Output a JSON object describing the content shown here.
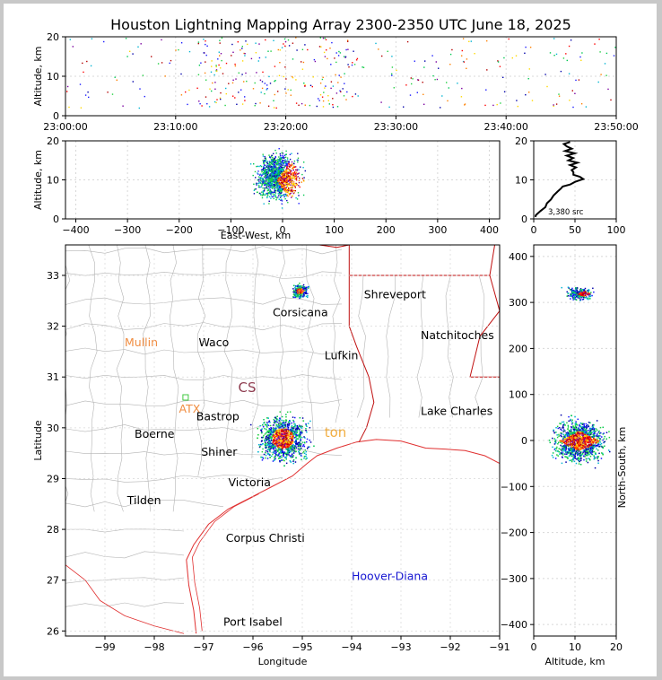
{
  "chart_data": {
    "title": "Houston Lightning Mapping Array 2300-2350 UTC June 18, 2025",
    "panels": [
      {
        "type": "scatter",
        "name": "time-altitude",
        "ylabel": "Altitude, km",
        "xlim": [
          "23:00:00",
          "23:50:00"
        ],
        "ylim": [
          0,
          20
        ],
        "x_ticks": [
          "23:00:00",
          "23:10:00",
          "23:20:00",
          "23:30:00",
          "23:40:00",
          "23:50:00"
        ],
        "y_ticks": [
          "0",
          "10",
          "20"
        ]
      },
      {
        "type": "scatter",
        "name": "east-west-altitude",
        "xlabel": "East-West, km",
        "ylabel": "Altitude, km",
        "xlim": [
          -420,
          420
        ],
        "ylim": [
          0,
          20
        ],
        "x_ticks": [
          "−400",
          "−300",
          "−200",
          "−100",
          "0",
          "100",
          "200",
          "300",
          "400"
        ],
        "y_ticks": [
          "0",
          "10",
          "20"
        ]
      },
      {
        "type": "line",
        "name": "altitude-histogram",
        "xlim": [
          0,
          100
        ],
        "ylim": [
          0,
          20
        ],
        "x_ticks": [
          "0",
          "50",
          "100"
        ],
        "y_ticks": [
          "0",
          "10",
          "20"
        ],
        "annotation": "3,380 src",
        "profile": [
          [
            2,
            0.5
          ],
          [
            5,
            1.0
          ],
          [
            8,
            2.0
          ],
          [
            12,
            3.0
          ],
          [
            16,
            4.0
          ],
          [
            20,
            5.0
          ],
          [
            24,
            6.0
          ],
          [
            28,
            7.0
          ],
          [
            33,
            7.8
          ],
          [
            38,
            8.3
          ],
          [
            44,
            8.8
          ],
          [
            52,
            9.5
          ],
          [
            60,
            10.2
          ],
          [
            55,
            10.8
          ],
          [
            48,
            11.3
          ],
          [
            50,
            12.0
          ],
          [
            46,
            12.5
          ],
          [
            52,
            13.2
          ],
          [
            44,
            13.8
          ],
          [
            50,
            14.4
          ],
          [
            42,
            15.0
          ],
          [
            48,
            15.6
          ],
          [
            40,
            16.2
          ],
          [
            50,
            16.8
          ],
          [
            38,
            17.4
          ],
          [
            46,
            18.0
          ],
          [
            40,
            18.6
          ],
          [
            36,
            19.2
          ],
          [
            44,
            19.7
          ]
        ]
      },
      {
        "type": "scatter",
        "name": "plan-view-map",
        "xlabel": "Longitude",
        "ylabel": "Latitude",
        "xlim": [
          -99.8,
          -91.0
        ],
        "ylim": [
          25.9,
          33.6
        ],
        "x_ticks": [
          "−99",
          "−98",
          "−97",
          "−96",
          "−95",
          "−94",
          "−93",
          "−92",
          "−91"
        ],
        "y_ticks": [
          "26",
          "27",
          "28",
          "29",
          "30",
          "31",
          "32",
          "33"
        ],
        "storm_clusters": [
          {
            "lon": -95.4,
            "lat": 29.8,
            "spread": [
              0.45,
              0.4
            ]
          },
          {
            "lon": -95.05,
            "lat": 32.7,
            "spread": [
              0.15,
              0.12
            ]
          }
        ],
        "cities": [
          {
            "name": "Shreveport",
            "lon": -93.75,
            "lat": 32.55,
            "color": "#000000"
          },
          {
            "name": "Corsicana",
            "lon": -95.6,
            "lat": 32.2,
            "color": "#000000"
          },
          {
            "name": "Natchitoches",
            "lon": -92.6,
            "lat": 31.75,
            "color": "#000000"
          },
          {
            "name": "Mullin",
            "lon": -98.6,
            "lat": 31.6,
            "color": "#f08c40"
          },
          {
            "name": "Waco",
            "lon": -97.1,
            "lat": 31.6,
            "color": "#000000"
          },
          {
            "name": "Lufkin",
            "lon": -94.55,
            "lat": 31.35,
            "color": "#000000"
          },
          {
            "name": "ATX",
            "lon": -97.5,
            "lat": 30.3,
            "color": "#f08c40"
          },
          {
            "name": "Bastrop",
            "lon": -97.15,
            "lat": 30.15,
            "color": "#000000"
          },
          {
            "name": "Lake Charles",
            "lon": -92.6,
            "lat": 30.25,
            "color": "#000000"
          },
          {
            "name": "Boerne",
            "lon": -98.4,
            "lat": 29.8,
            "color": "#000000"
          },
          {
            "name": "Shiner",
            "lon": -97.05,
            "lat": 29.45,
            "color": "#000000"
          },
          {
            "name": "Victoria",
            "lon": -96.5,
            "lat": 28.85,
            "color": "#000000"
          },
          {
            "name": "Tilden",
            "lon": -98.55,
            "lat": 28.5,
            "color": "#000000"
          },
          {
            "name": "Corpus Christi",
            "lon": -96.55,
            "lat": 27.75,
            "color": "#000000"
          },
          {
            "name": "Hoover-Diana",
            "lon": -94.0,
            "lat": 27.0,
            "color": "#1414d2"
          },
          {
            "name": "Port Isabel",
            "lon": -96.6,
            "lat": 26.1,
            "color": "#000000"
          }
        ],
        "faint_labels": [
          {
            "text": "CS",
            "lon": -96.3,
            "lat": 30.7,
            "color": "#7a1a30"
          },
          {
            "text": "ton",
            "lon": -94.55,
            "lat": 29.82,
            "color": "#f0a020"
          }
        ]
      },
      {
        "type": "scatter",
        "name": "altitude-north-south",
        "xlabel": "Altitude, km",
        "ylabel": "North-South, km",
        "xlim": [
          0,
          20
        ],
        "ylim": [
          -425,
          425
        ],
        "x_ticks": [
          "0",
          "10",
          "20"
        ],
        "y_ticks": [
          "−400",
          "−300",
          "−200",
          "−100",
          "0",
          "100",
          "200",
          "300",
          "400"
        ]
      }
    ],
    "colors": {
      "axes": "#000000",
      "grid": "#d8d8d8",
      "county_lines": "#b4b4b4",
      "coast": "#e03030",
      "state_border": "#c01010",
      "point_palette": [
        "#1a1aff",
        "#0000aa",
        "#00b4d2",
        "#00c850",
        "#20d040",
        "#ffd800",
        "#ff8000",
        "#ff0000",
        "#b40000",
        "#7a00a0"
      ]
    }
  }
}
